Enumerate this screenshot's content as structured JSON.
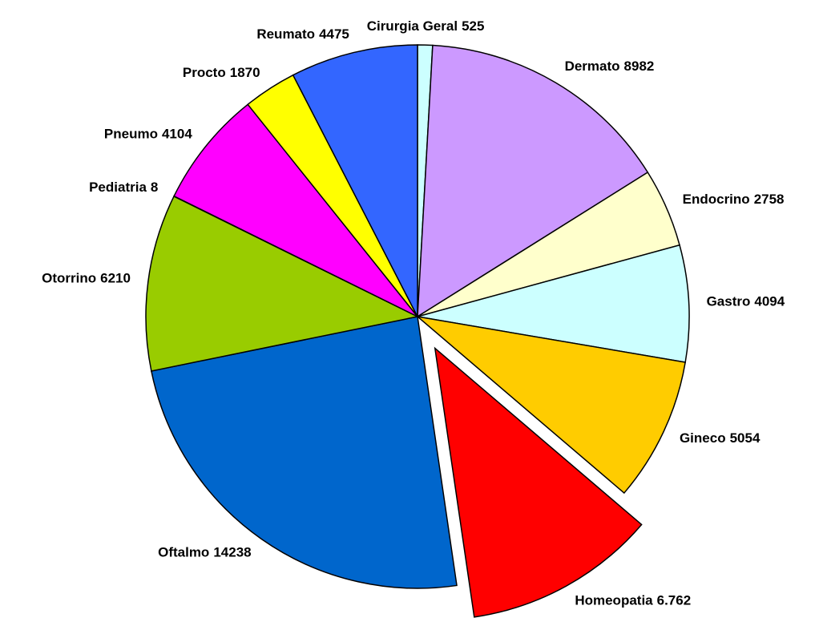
{
  "chart_data": {
    "type": "pie",
    "categories": [
      "Cirurgia Geral",
      "Dermato",
      "Endocrino",
      "Gastro",
      "Gineco",
      "Homeopatia",
      "Oftalmo",
      "Otorrino",
      "Pediatria",
      "Pneumo",
      "Procto",
      "Reumato"
    ],
    "values": [
      525,
      8982,
      2758,
      4094,
      5054,
      6762,
      14238,
      6210,
      8,
      4104,
      1870,
      4475
    ],
    "value_labels": [
      "525",
      "8982",
      "2758",
      "4094",
      "5054",
      "6.762",
      "14238",
      "6210",
      "8",
      "4104",
      "1870",
      "4475"
    ],
    "colors": [
      "#ccffff",
      "#cc99ff",
      "#ffffcc",
      "#ccffff",
      "#ffcc00",
      "#ff0000",
      "#0066cc",
      "#99cc00",
      "#993366",
      "#ff00ff",
      "#ffff00",
      "#3366ff"
    ],
    "exploded": [
      false,
      false,
      false,
      false,
      false,
      true,
      false,
      false,
      false,
      false,
      false,
      false
    ]
  }
}
